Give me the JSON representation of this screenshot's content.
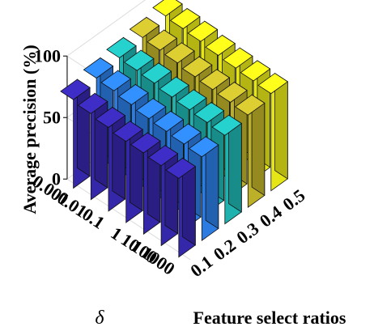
{
  "chart_data": {
    "type": "bar3d",
    "zlabel": "Average precision (%)",
    "xlabel": "Feature select ratios",
    "ylabel": "δ",
    "zlim": [
      0,
      100
    ],
    "z_ticks": [
      "0",
      "50",
      "100"
    ],
    "feature_ratios": [
      "0.1",
      "0.2",
      "0.3",
      "0.4",
      "0.5"
    ],
    "delta_values": [
      "0.001",
      "0.01",
      "0.1",
      "1",
      "10",
      "100",
      "1000"
    ],
    "series_colors": [
      "#3a2ab8",
      "#2f86f5",
      "#22c2be",
      "#cdbf2d",
      "#fafa19"
    ],
    "values": [
      [
        72,
        70,
        68,
        66,
        66,
        65,
        64
      ],
      [
        76,
        75,
        73,
        71,
        70,
        69,
        68
      ],
      [
        79,
        78,
        77,
        75,
        74,
        73,
        72
      ],
      [
        82,
        81,
        80,
        78,
        77,
        76,
        75
      ],
      [
        86,
        85,
        84,
        82,
        81,
        80,
        79
      ]
    ]
  }
}
